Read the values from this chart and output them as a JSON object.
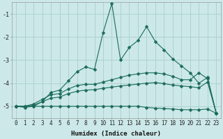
{
  "title": "",
  "xlabel": "Humidex (Indice chaleur)",
  "ylabel": "",
  "background_color": "#cce8e8",
  "grid_color": "#aacece",
  "line_color": "#1a6b5a",
  "x": [
    0,
    1,
    2,
    3,
    4,
    5,
    6,
    7,
    8,
    9,
    10,
    11,
    12,
    13,
    14,
    15,
    16,
    17,
    18,
    19,
    20,
    21,
    22,
    23
  ],
  "series": {
    "line1_zigzag": [
      -5.0,
      -5.05,
      -5.0,
      -4.8,
      -4.4,
      -4.3,
      -3.9,
      -3.5,
      -3.3,
      -3.4,
      -1.8,
      -0.55,
      -3.0,
      -2.45,
      -2.15,
      -1.55,
      -2.2,
      -2.55,
      -2.95,
      -3.25,
      -3.55,
      -4.0,
      -3.75,
      -5.3
    ],
    "line2_upper": [
      -5.0,
      -5.0,
      -4.9,
      -4.7,
      -4.5,
      -4.45,
      -4.25,
      -4.1,
      -4.05,
      -4.05,
      -3.95,
      -3.85,
      -3.75,
      -3.65,
      -3.6,
      -3.55,
      -3.55,
      -3.6,
      -3.7,
      -3.85,
      -3.85,
      -3.55,
      -3.8,
      -5.3
    ],
    "line3_mid": [
      -5.0,
      -5.0,
      -4.95,
      -4.8,
      -4.65,
      -4.6,
      -4.45,
      -4.35,
      -4.3,
      -4.28,
      -4.22,
      -4.17,
      -4.12,
      -4.08,
      -4.04,
      -4.0,
      -3.97,
      -4.02,
      -4.08,
      -4.12,
      -4.15,
      -4.2,
      -3.95,
      -5.3
    ],
    "line4_flat": [
      -5.0,
      -5.0,
      -5.0,
      -5.0,
      -5.0,
      -5.0,
      -5.0,
      -5.0,
      -5.0,
      -5.0,
      -5.0,
      -5.0,
      -5.0,
      -5.0,
      -5.0,
      -5.05,
      -5.08,
      -5.1,
      -5.12,
      -5.15,
      -5.15,
      -5.15,
      -5.12,
      -5.3
    ]
  },
  "ylim": [
    -5.5,
    -0.5
  ],
  "xlim": [
    -0.5,
    23.5
  ],
  "yticks": [
    -5,
    -4,
    -3,
    -2,
    -1
  ],
  "xticks": [
    0,
    1,
    2,
    3,
    4,
    5,
    6,
    7,
    8,
    9,
    10,
    11,
    12,
    13,
    14,
    15,
    16,
    17,
    18,
    19,
    20,
    21,
    22,
    23
  ],
  "tick_fontsize": 5.5,
  "xlabel_fontsize": 6.5
}
